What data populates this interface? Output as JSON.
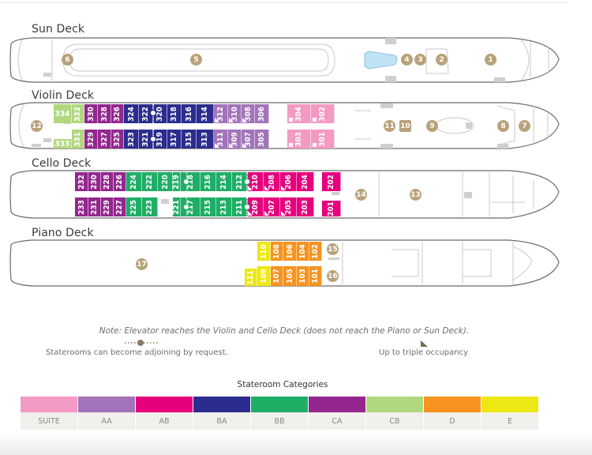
{
  "decks": {
    "sun": {
      "title": "Sun Deck"
    },
    "violin": {
      "title": "Violin Deck"
    },
    "cello": {
      "title": "Cello Deck"
    },
    "piano": {
      "title": "Piano Deck"
    }
  },
  "markers": {
    "m1": "1",
    "m2": "2",
    "m3": "3",
    "m4": "4",
    "m5": "5",
    "m6": "6",
    "m7": "7",
    "m8": "8",
    "m9": "9",
    "m10": "10",
    "m11": "11",
    "m12": "12",
    "m13": "13",
    "m14": "14",
    "m15": "15",
    "m16": "16",
    "m17": "17"
  },
  "violin_cabins": {
    "top": [
      {
        "n": "334",
        "cat": "CB"
      },
      {
        "n": "332",
        "cat": "CB"
      },
      {
        "n": "330",
        "cat": "CA"
      },
      {
        "n": "328",
        "cat": "CA"
      },
      {
        "n": "326",
        "cat": "CA"
      },
      {
        "n": "324",
        "cat": "BA"
      },
      {
        "n": "322",
        "cat": "BA"
      },
      {
        "n": "320",
        "cat": "BA"
      },
      {
        "n": "318",
        "cat": "BA"
      },
      {
        "n": "316",
        "cat": "BA"
      },
      {
        "n": "314",
        "cat": "BA"
      },
      {
        "n": "312",
        "cat": "AA"
      },
      {
        "n": "310",
        "cat": "AA"
      },
      {
        "n": "308",
        "cat": "AA"
      },
      {
        "n": "306",
        "cat": "AA"
      },
      {
        "n": "304",
        "cat": "SUITE"
      },
      {
        "n": "302",
        "cat": "SUITE"
      }
    ],
    "bottom": [
      {
        "n": "333",
        "cat": "CB"
      },
      {
        "n": "331",
        "cat": "CB"
      },
      {
        "n": "329",
        "cat": "CA"
      },
      {
        "n": "327",
        "cat": "CA"
      },
      {
        "n": "325",
        "cat": "CA"
      },
      {
        "n": "323",
        "cat": "BA"
      },
      {
        "n": "321",
        "cat": "BA"
      },
      {
        "n": "319",
        "cat": "BA"
      },
      {
        "n": "317",
        "cat": "BA"
      },
      {
        "n": "315",
        "cat": "BA"
      },
      {
        "n": "313",
        "cat": "BA"
      },
      {
        "n": "311",
        "cat": "AA"
      },
      {
        "n": "309",
        "cat": "AA"
      },
      {
        "n": "307",
        "cat": "AA"
      },
      {
        "n": "305",
        "cat": "AA"
      },
      {
        "n": "303",
        "cat": "SUITE"
      },
      {
        "n": "301",
        "cat": "SUITE"
      }
    ]
  },
  "cello_cabins": {
    "top": [
      {
        "n": "232",
        "cat": "CA"
      },
      {
        "n": "230",
        "cat": "CA"
      },
      {
        "n": "228",
        "cat": "CA"
      },
      {
        "n": "226",
        "cat": "CA"
      },
      {
        "n": "224",
        "cat": "BB"
      },
      {
        "n": "222",
        "cat": "BB"
      },
      {
        "n": "220",
        "cat": "BB"
      },
      {
        "n": "219",
        "cat": "BB"
      },
      {
        "n": "218",
        "cat": "BB"
      },
      {
        "n": "216",
        "cat": "BB"
      },
      {
        "n": "214",
        "cat": "BB"
      },
      {
        "n": "212",
        "cat": "BB"
      },
      {
        "n": "210",
        "cat": "AB"
      },
      {
        "n": "208",
        "cat": "AB"
      },
      {
        "n": "206",
        "cat": "AB"
      },
      {
        "n": "204",
        "cat": "AB"
      },
      {
        "n": "202",
        "cat": "AB"
      }
    ],
    "bottom": [
      {
        "n": "233",
        "cat": "CA"
      },
      {
        "n": "231",
        "cat": "CA"
      },
      {
        "n": "229",
        "cat": "CA"
      },
      {
        "n": "227",
        "cat": "CA"
      },
      {
        "n": "225",
        "cat": "BB"
      },
      {
        "n": "223",
        "cat": "BB"
      },
      {
        "n": "221",
        "cat": "BB"
      },
      {
        "n": "217",
        "cat": "BB"
      },
      {
        "n": "215",
        "cat": "BB"
      },
      {
        "n": "213",
        "cat": "BB"
      },
      {
        "n": "211",
        "cat": "BB"
      },
      {
        "n": "209",
        "cat": "AB"
      },
      {
        "n": "207",
        "cat": "AB"
      },
      {
        "n": "205",
        "cat": "AB"
      },
      {
        "n": "203",
        "cat": "AB"
      },
      {
        "n": "201",
        "cat": "AB"
      }
    ]
  },
  "piano_cabins": {
    "top": [
      {
        "n": "110",
        "cat": "E"
      },
      {
        "n": "108",
        "cat": "D"
      },
      {
        "n": "106",
        "cat": "D"
      },
      {
        "n": "104",
        "cat": "D"
      },
      {
        "n": "102",
        "cat": "D"
      }
    ],
    "bottom": [
      {
        "n": "111",
        "cat": "E"
      },
      {
        "n": "109",
        "cat": "E"
      },
      {
        "n": "107",
        "cat": "D"
      },
      {
        "n": "105",
        "cat": "D"
      },
      {
        "n": "103",
        "cat": "D"
      },
      {
        "n": "101",
        "cat": "D"
      }
    ]
  },
  "notes": {
    "elevator": "Note: Elevator reaches the Violin and Cello Deck (does not reach the Piano or Sun Deck).",
    "adjoining": "Staterooms can become adjoining by request.",
    "triple": "Up to triple occupancy"
  },
  "categories": {
    "title": "Stateroom Categories",
    "items": [
      {
        "label": "SUITE",
        "color": "#f39ac4"
      },
      {
        "label": "AA",
        "color": "#a274b9"
      },
      {
        "label": "AB",
        "color": "#e6007e"
      },
      {
        "label": "BA",
        "color": "#2b2d8e"
      },
      {
        "label": "BB",
        "color": "#1fae66"
      },
      {
        "label": "CA",
        "color": "#93278f"
      },
      {
        "label": "CB",
        "color": "#b1d77f"
      },
      {
        "label": "D",
        "color": "#f7931e"
      },
      {
        "label": "E",
        "color": "#ede813"
      }
    ]
  },
  "colors": {
    "marker": "#b8a27a",
    "hull_line": "#6b6b6b",
    "pool": "#bfe3f5"
  }
}
